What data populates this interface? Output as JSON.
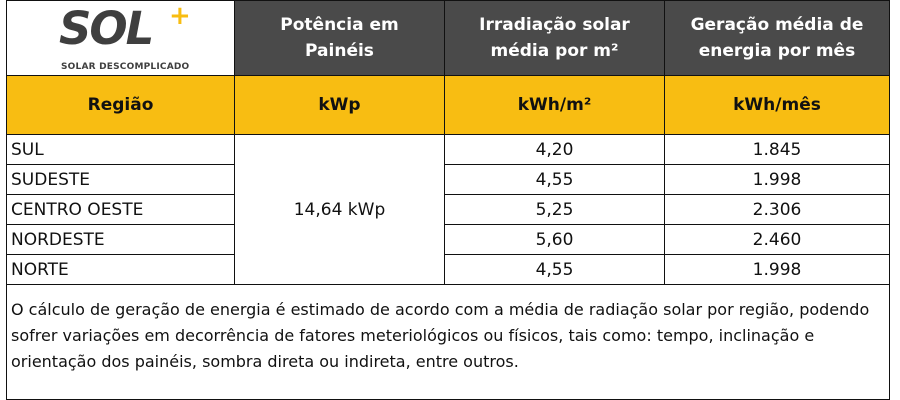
{
  "logo": {
    "word": "SOL",
    "plus": "+",
    "tagline": "SOLAR DESCOMPLICADO"
  },
  "header": {
    "col2": "Potência em Painéis",
    "col3": "Irradiação solar média por m²",
    "col4": "Geração média de energia por mês"
  },
  "subheader": {
    "col1": "Região",
    "col2": "kWp",
    "col3": "kWh/m²",
    "col4": "kWh/mês"
  },
  "power": "14,64 kWp",
  "rows": [
    {
      "region": "SUL",
      "irradiation": "4,20",
      "generation": "1.845"
    },
    {
      "region": "SUDESTE",
      "irradiation": "4,55",
      "generation": "1.998"
    },
    {
      "region": "CENTRO OESTE",
      "irradiation": "5,25",
      "generation": "2.306"
    },
    {
      "region": "NORDESTE",
      "irradiation": "5,60",
      "generation": "2.460"
    },
    {
      "region": "NORTE",
      "irradiation": "4,55",
      "generation": "1.998"
    }
  ],
  "note": "O cálculo de geração de energia é estimado de acordo com a média de radiação solar por região, podendo sofrer variações em decorrência de fatores meteriológicos ou físicos, tais como: tempo, inclinação e orientação dos painéis, sombra direta ou indireta, entre outros.",
  "colors": {
    "dark_header": "#4a4a4a",
    "accent_yellow": "#f8bd12",
    "logo_gray": "#3f3f3f"
  }
}
